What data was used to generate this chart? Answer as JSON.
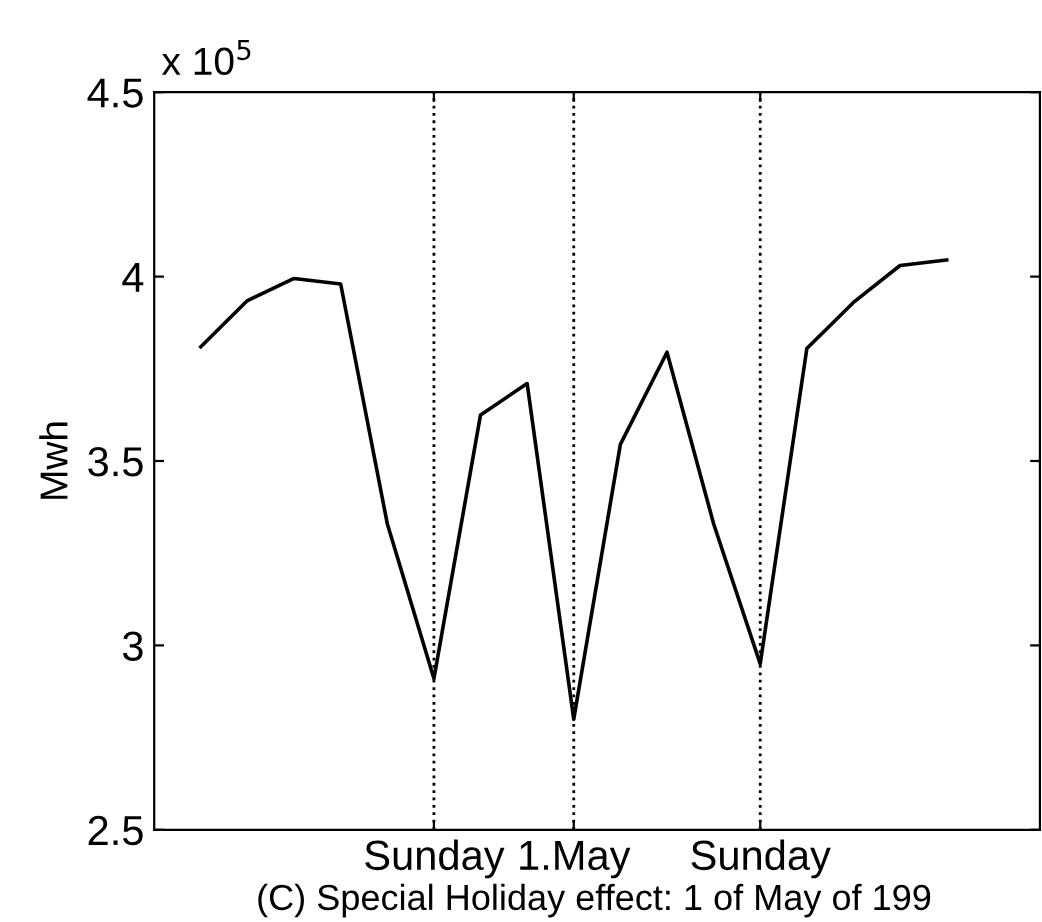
{
  "chart_data": {
    "type": "line",
    "ylabel": "Mwh",
    "categories": [
      null,
      null,
      null,
      null,
      null,
      "Sunday",
      null,
      null,
      "1.May",
      null,
      null,
      null,
      "Sunday",
      null,
      null,
      null,
      null
    ],
    "series": [
      {
        "color": "#000000",
        "values": [
          3.81,
          3.935,
          3.995,
          3.98,
          3.33,
          2.91,
          3.625,
          3.71,
          2.8,
          3.545,
          3.795,
          3.33,
          2.95,
          3.805,
          3.93,
          4.03,
          4.045
        ]
      }
    ],
    "ylim": [
      2.5,
      4.5
    ],
    "yticks": [
      2.5,
      3,
      3.5,
      4,
      4.5
    ],
    "annotations": [
      "x 10$^{5}$",
      "(C) Special Holiday effect: 1 of May of 199"
    ],
    "grid": "x",
    "marker": "none",
    "line_style": "solid"
  }
}
